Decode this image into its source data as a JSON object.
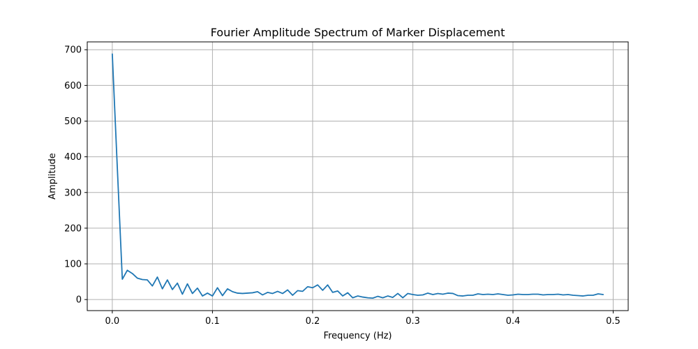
{
  "chart_data": {
    "type": "line",
    "title": "Fourier Amplitude Spectrum of Marker Displacement",
    "xlabel": "Frequency (Hz)",
    "ylabel": "Amplitude",
    "xlim": [
      -0.025,
      0.515
    ],
    "ylim": [
      -31,
      722
    ],
    "xticks": [
      0.0,
      0.1,
      0.2,
      0.3,
      0.4,
      0.5
    ],
    "xtick_labels": [
      "0.0",
      "0.1",
      "0.2",
      "0.3",
      "0.4",
      "0.5"
    ],
    "yticks": [
      0,
      100,
      200,
      300,
      400,
      500,
      600,
      700
    ],
    "ytick_labels": [
      "0",
      "100",
      "200",
      "300",
      "400",
      "500",
      "600",
      "700"
    ],
    "grid": true,
    "line_color": "#1f77b4",
    "series": [
      {
        "x": [
          0.0,
          0.005,
          0.01,
          0.015,
          0.02,
          0.025,
          0.03,
          0.035,
          0.04,
          0.045,
          0.05,
          0.055,
          0.06,
          0.065,
          0.07,
          0.075,
          0.08,
          0.085,
          0.09,
          0.095,
          0.1,
          0.105,
          0.11,
          0.115,
          0.12,
          0.125,
          0.13,
          0.135,
          0.14,
          0.145,
          0.15,
          0.155,
          0.16,
          0.165,
          0.17,
          0.175,
          0.18,
          0.185,
          0.19,
          0.195,
          0.2,
          0.205,
          0.21,
          0.215,
          0.22,
          0.225,
          0.23,
          0.235,
          0.24,
          0.245,
          0.25,
          0.255,
          0.26,
          0.265,
          0.27,
          0.275,
          0.28,
          0.285,
          0.29,
          0.295,
          0.3,
          0.305,
          0.31,
          0.315,
          0.32,
          0.325,
          0.33,
          0.335,
          0.34,
          0.345,
          0.35,
          0.355,
          0.36,
          0.365,
          0.37,
          0.375,
          0.38,
          0.385,
          0.39,
          0.395,
          0.4,
          0.405,
          0.41,
          0.415,
          0.42,
          0.425,
          0.43,
          0.435,
          0.44,
          0.445,
          0.45,
          0.455,
          0.46,
          0.465,
          0.47,
          0.475,
          0.48,
          0.485,
          0.49
        ],
        "values": [
          688,
          370,
          57,
          82,
          73,
          60,
          56,
          55,
          38,
          63,
          30,
          55,
          28,
          46,
          15,
          44,
          17,
          32,
          10,
          18,
          10,
          33,
          11,
          30,
          22,
          18,
          17,
          18,
          19,
          22,
          13,
          20,
          17,
          23,
          17,
          27,
          12,
          25,
          23,
          36,
          33,
          41,
          26,
          41,
          20,
          24,
          10,
          19,
          5,
          10,
          7,
          5,
          4,
          9,
          5,
          10,
          6,
          17,
          5,
          17,
          14,
          12,
          13,
          18,
          14,
          17,
          15,
          18,
          17,
          11,
          10,
          12,
          12,
          16,
          14,
          15,
          14,
          16,
          14,
          12,
          13,
          15,
          14,
          14,
          15,
          15,
          13,
          14,
          14,
          15,
          13,
          14,
          12,
          11,
          10,
          12,
          12,
          16,
          14
        ]
      }
    ]
  }
}
